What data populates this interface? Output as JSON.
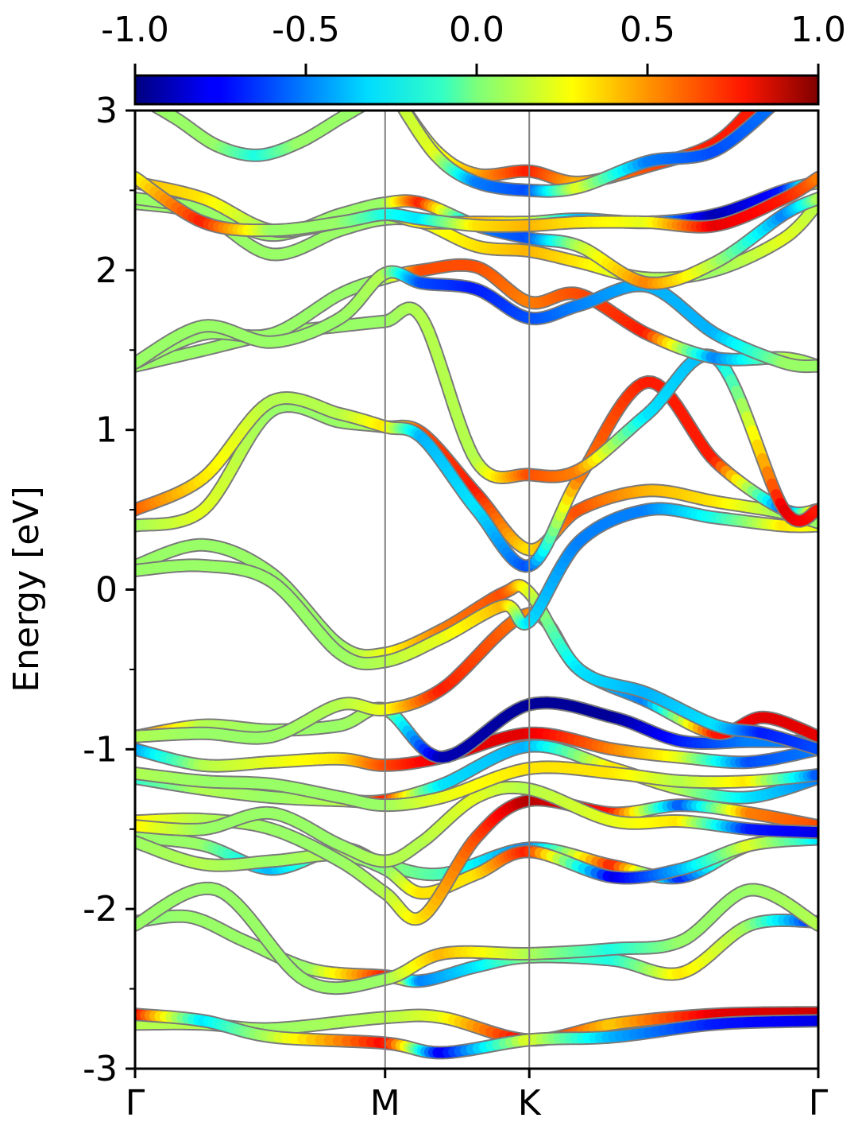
{
  "chart_data": {
    "type": "line",
    "ylabel": "Energy [eV]",
    "xlabel": "",
    "ylim": [
      -3,
      3
    ],
    "x_ticks": [
      {
        "label": "Γ",
        "x": 0.0
      },
      {
        "label": "M",
        "x": 0.366
      },
      {
        "label": "K",
        "x": 0.577
      },
      {
        "label": "Γ",
        "x": 1.0
      }
    ],
    "y_ticks": [
      {
        "label": "-3",
        "value": -3
      },
      {
        "label": "-2",
        "value": -2
      },
      {
        "label": "-1",
        "value": -1
      },
      {
        "label": "0",
        "value": 0
      },
      {
        "label": "1",
        "value": 1
      },
      {
        "label": "2",
        "value": 2
      },
      {
        "label": "3",
        "value": 3
      }
    ],
    "colorbar": {
      "range": [
        -1.0,
        1.0
      ],
      "colormap": "jet",
      "placement": "top",
      "ticks": [
        {
          "label": "-1.0",
          "value": -1.0
        },
        {
          "label": "-0.5",
          "value": -0.5
        },
        {
          "label": "0.0",
          "value": 0.0
        },
        {
          "label": "0.5",
          "value": 0.5
        },
        {
          "label": "1.0",
          "value": 1.0
        }
      ]
    },
    "grid": false,
    "series": [
      {
        "x": [
          0,
          0.1,
          0.2,
          0.366,
          0.45,
          0.577,
          0.7,
          0.85,
          1.0
        ],
        "energy": [
          -2.72,
          -2.72,
          -2.75,
          -2.68,
          -2.68,
          -2.82,
          -2.72,
          -2.66,
          -2.65
        ],
        "weight": [
          0.1,
          0.1,
          0.05,
          0.1,
          0.2,
          0.8,
          0.35,
          0.8,
          0.85
        ]
      },
      {
        "x": [
          0,
          0.1,
          0.2,
          0.366,
          0.45,
          0.577,
          0.7,
          0.85,
          1.0
        ],
        "energy": [
          -2.66,
          -2.7,
          -2.8,
          -2.84,
          -2.9,
          -2.82,
          -2.8,
          -2.72,
          -2.7
        ],
        "weight": [
          0.85,
          -0.3,
          0.1,
          0.75,
          -0.8,
          0.2,
          -0.4,
          -0.7,
          -0.8
        ]
      },
      {
        "x": [
          0,
          0.08,
          0.16,
          0.26,
          0.366,
          0.42,
          0.5,
          0.577,
          0.7,
          0.8,
          0.9,
          1.0
        ],
        "energy": [
          -2.08,
          -2.05,
          -2.2,
          -2.38,
          -2.42,
          -2.45,
          -2.36,
          -2.3,
          -2.32,
          -2.4,
          -2.1,
          -2.08
        ],
        "weight": [
          0.0,
          0.05,
          0.05,
          0.05,
          0.7,
          -0.5,
          -0.3,
          0.0,
          -0.2,
          0.3,
          0.05,
          -0.8
        ]
      },
      {
        "x": [
          0,
          0.12,
          0.25,
          0.366,
          0.45,
          0.577,
          0.7,
          0.8,
          0.9,
          1.0
        ],
        "energy": [
          -2.1,
          -1.88,
          -2.45,
          -2.44,
          -2.28,
          -2.28,
          -2.25,
          -2.2,
          -1.88,
          -2.1
        ],
        "weight": [
          0.05,
          0.05,
          0.05,
          0.05,
          0.4,
          0.1,
          -0.2,
          0.05,
          0.05,
          0.1
        ]
      },
      {
        "x": [
          0,
          0.1,
          0.2,
          0.3,
          0.366,
          0.45,
          0.577,
          0.7,
          0.8,
          0.9,
          1.0
        ],
        "energy": [
          -1.55,
          -1.6,
          -1.75,
          -1.62,
          -1.72,
          -1.78,
          -1.62,
          -1.73,
          -1.8,
          -1.6,
          -1.56
        ],
        "weight": [
          0.05,
          0.05,
          -0.4,
          0.1,
          0.05,
          -0.1,
          -0.5,
          0.7,
          -0.7,
          0.3,
          0.05
        ]
      },
      {
        "x": [
          0,
          0.1,
          0.2,
          0.3,
          0.366,
          0.42,
          0.5,
          0.577,
          0.7,
          0.8,
          0.9,
          1.0
        ],
        "energy": [
          -1.58,
          -1.72,
          -1.7,
          -1.66,
          -1.75,
          -1.9,
          -1.78,
          -1.64,
          -1.8,
          -1.75,
          -1.6,
          -1.56
        ],
        "weight": [
          0.05,
          0.1,
          0.05,
          0.1,
          0.0,
          0.3,
          0.3,
          0.7,
          -0.8,
          -0.4,
          0.2,
          -0.3
        ]
      },
      {
        "x": [
          0,
          0.1,
          0.2,
          0.3,
          0.366,
          0.42,
          0.5,
          0.577,
          0.7,
          0.8,
          0.9,
          1.0
        ],
        "energy": [
          -1.45,
          -1.44,
          -1.5,
          -1.7,
          -1.9,
          -2.05,
          -1.55,
          -1.32,
          -1.4,
          -1.35,
          -1.4,
          -1.48
        ],
        "weight": [
          0.3,
          0.1,
          0.05,
          0.05,
          0.1,
          0.3,
          0.6,
          0.9,
          0.7,
          -0.6,
          0.5,
          0.6
        ]
      },
      {
        "x": [
          0,
          0.1,
          0.2,
          0.3,
          0.366,
          0.42,
          0.5,
          0.577,
          0.7,
          0.8,
          0.9,
          1.0
        ],
        "energy": [
          -1.48,
          -1.5,
          -1.4,
          -1.6,
          -1.7,
          -1.58,
          -1.3,
          -1.25,
          -1.45,
          -1.45,
          -1.5,
          -1.52
        ],
        "weight": [
          0.3,
          0.05,
          0.05,
          0.05,
          0.1,
          0.1,
          0.2,
          0.1,
          0.2,
          0.3,
          -0.7,
          -0.8
        ]
      },
      {
        "x": [
          0,
          0.1,
          0.2,
          0.3,
          0.366,
          0.45,
          0.577,
          0.7,
          0.8,
          0.9,
          1.0
        ],
        "energy": [
          -1.18,
          -1.25,
          -1.3,
          -1.32,
          -1.32,
          -1.22,
          -0.98,
          -1.12,
          -1.25,
          -1.3,
          -1.18
        ],
        "weight": [
          -0.2,
          0.1,
          0.05,
          0.1,
          0.7,
          -0.3,
          -0.4,
          0.3,
          0.1,
          -0.3,
          -0.5
        ]
      },
      {
        "x": [
          0,
          0.1,
          0.2,
          0.3,
          0.366,
          0.45,
          0.577,
          0.7,
          0.8,
          0.9,
          1.0
        ],
        "energy": [
          -1.15,
          -1.2,
          -1.22,
          -1.3,
          -1.35,
          -1.3,
          -1.12,
          -1.15,
          -1.2,
          -1.2,
          -1.16
        ],
        "weight": [
          0.1,
          0.05,
          0.05,
          0.05,
          0.05,
          0.2,
          0.3,
          0.3,
          0.1,
          0.3,
          -0.6
        ]
      },
      {
        "x": [
          0,
          0.1,
          0.2,
          0.3,
          0.366,
          0.45,
          0.577,
          0.7,
          0.8,
          0.9,
          1.0
        ],
        "energy": [
          -1.0,
          -1.1,
          -1.08,
          -1.06,
          -1.1,
          -1.05,
          -0.9,
          -1.0,
          -1.05,
          -1.08,
          -1.0
        ],
        "weight": [
          -0.5,
          0.1,
          0.2,
          0.3,
          0.6,
          0.8,
          0.8,
          0.5,
          0.2,
          -0.6,
          -0.5
        ]
      },
      {
        "x": [
          0,
          0.1,
          0.2,
          0.3,
          0.366,
          0.45,
          0.577,
          0.7,
          0.8,
          0.9,
          1.0
        ],
        "energy": [
          -0.92,
          -0.85,
          -0.88,
          -0.85,
          -0.75,
          -1.05,
          -0.72,
          -0.8,
          -0.95,
          -0.95,
          -0.95
        ],
        "weight": [
          0.6,
          0.1,
          0.05,
          0.05,
          0.1,
          -0.9,
          -0.95,
          -0.95,
          -0.7,
          -0.5,
          -0.5
        ]
      },
      {
        "x": [
          0,
          0.1,
          0.2,
          0.3,
          0.366,
          0.45,
          0.577,
          0.65,
          0.75,
          0.85,
          0.92,
          1.0
        ],
        "energy": [
          -0.92,
          -0.9,
          -0.92,
          -0.72,
          -0.75,
          -0.62,
          -0.15,
          -0.5,
          -0.7,
          -0.9,
          -0.8,
          -0.92
        ],
        "weight": [
          0.1,
          0.05,
          0.05,
          0.1,
          0.2,
          0.7,
          0.5,
          -0.3,
          -0.5,
          0.7,
          0.8,
          0.8
        ]
      },
      {
        "x": [
          0,
          0.1,
          0.2,
          0.3,
          0.366,
          0.45,
          0.54,
          0.577,
          0.65,
          0.75,
          0.85,
          0.92,
          1.0
        ],
        "energy": [
          0.15,
          0.28,
          0.1,
          -0.35,
          -0.4,
          -0.25,
          -0.02,
          -0.02,
          -0.5,
          -0.65,
          -0.85,
          -0.9,
          -1.0
        ],
        "weight": [
          0.05,
          0.05,
          0.05,
          0.05,
          0.2,
          0.5,
          0.6,
          0.2,
          -0.3,
          -0.4,
          -0.3,
          -0.7,
          -0.6
        ]
      },
      {
        "x": [
          0,
          0.1,
          0.2,
          0.3,
          0.366,
          0.45,
          0.54,
          0.577,
          0.65,
          0.75,
          0.85,
          0.95,
          1.0
        ],
        "energy": [
          0.12,
          0.15,
          0.05,
          -0.4,
          -0.45,
          -0.3,
          -0.1,
          -0.2,
          0.3,
          0.5,
          0.45,
          0.4,
          0.4
        ],
        "weight": [
          0.05,
          0.05,
          0.05,
          0.05,
          0.1,
          0.2,
          0.4,
          -0.3,
          -0.5,
          -0.5,
          -0.2,
          0.3,
          0.2
        ]
      },
      {
        "x": [
          0,
          0.1,
          0.2,
          0.3,
          0.366,
          0.42,
          0.5,
          0.577,
          0.65,
          0.75,
          0.85,
          0.95,
          1.0
        ],
        "energy": [
          0.4,
          0.5,
          1.12,
          1.05,
          1.02,
          0.98,
          0.6,
          0.25,
          0.5,
          0.62,
          0.55,
          0.48,
          0.42
        ],
        "weight": [
          0.05,
          0.2,
          0.05,
          0.05,
          0.1,
          0.6,
          0.7,
          0.3,
          0.6,
          0.4,
          0.3,
          0.05,
          0.05
        ]
      },
      {
        "x": [
          0,
          0.1,
          0.2,
          0.3,
          0.366,
          0.42,
          0.5,
          0.577,
          0.65,
          0.75,
          0.85,
          0.95,
          1.0
        ],
        "energy": [
          0.5,
          0.7,
          1.18,
          1.1,
          1.02,
          0.95,
          0.5,
          0.15,
          0.7,
          1.3,
          0.8,
          0.5,
          0.5
        ],
        "weight": [
          0.6,
          0.3,
          0.1,
          0.1,
          0.3,
          -0.4,
          -0.3,
          -0.6,
          0.5,
          0.7,
          0.7,
          -0.6,
          0.6
        ]
      },
      {
        "x": [
          0,
          0.1,
          0.2,
          0.3,
          0.366,
          0.42,
          0.5,
          0.577,
          0.65,
          0.75,
          0.85,
          0.95,
          1.0
        ],
        "energy": [
          1.4,
          1.5,
          1.6,
          1.65,
          1.68,
          1.7,
          0.8,
          0.72,
          0.75,
          1.1,
          1.45,
          0.5,
          0.5
        ],
        "weight": [
          0.05,
          0.05,
          0.05,
          0.05,
          0.05,
          0.1,
          0.1,
          0.6,
          0.5,
          -0.3,
          -0.4,
          0.8,
          0.7
        ]
      },
      {
        "x": [
          0,
          0.1,
          0.2,
          0.3,
          0.366,
          0.42,
          0.5,
          0.577,
          0.65,
          0.75,
          0.85,
          0.95,
          1.0
        ],
        "energy": [
          1.42,
          1.6,
          1.6,
          1.85,
          1.95,
          2.0,
          2.02,
          1.8,
          1.85,
          1.6,
          1.45,
          1.45,
          1.4
        ],
        "weight": [
          0.05,
          0.05,
          0.05,
          0.05,
          0.05,
          0.6,
          0.6,
          0.5,
          0.6,
          0.7,
          -0.5,
          0.1,
          0.05
        ]
      },
      {
        "x": [
          0,
          0.1,
          0.2,
          0.3,
          0.366,
          0.42,
          0.5,
          0.577,
          0.65,
          0.75,
          0.85,
          0.95,
          1.0
        ],
        "energy": [
          1.42,
          1.65,
          1.55,
          1.7,
          1.98,
          1.92,
          1.88,
          1.7,
          1.78,
          1.9,
          1.6,
          1.42,
          1.4
        ],
        "weight": [
          0.05,
          0.05,
          0.05,
          0.05,
          0.1,
          -0.6,
          -0.7,
          -0.6,
          -0.5,
          -0.4,
          -0.4,
          0.05,
          0.05
        ]
      },
      {
        "x": [
          0,
          0.1,
          0.2,
          0.3,
          0.366,
          0.42,
          0.5,
          0.577,
          0.65,
          0.75,
          0.85,
          0.95,
          1.0
        ],
        "energy": [
          2.42,
          2.35,
          2.1,
          2.25,
          2.32,
          2.3,
          2.15,
          2.12,
          2.05,
          1.95,
          2.0,
          2.2,
          2.42
        ],
        "weight": [
          0.05,
          0.05,
          0.05,
          0.05,
          0.05,
          0.2,
          0.3,
          0.4,
          0.3,
          0.1,
          0.05,
          0.2,
          0.1
        ]
      },
      {
        "x": [
          0,
          0.1,
          0.2,
          0.3,
          0.366,
          0.42,
          0.5,
          0.577,
          0.65,
          0.75,
          0.85,
          0.95,
          1.0
        ],
        "energy": [
          2.45,
          2.38,
          2.22,
          2.35,
          2.42,
          2.42,
          2.28,
          2.2,
          2.15,
          1.92,
          2.05,
          2.35,
          2.45
        ],
        "weight": [
          0.05,
          0.05,
          0.05,
          0.05,
          0.05,
          0.7,
          -0.5,
          -0.6,
          0.1,
          0.5,
          0.1,
          -0.5,
          0.1
        ]
      },
      {
        "x": [
          0,
          0.1,
          0.2,
          0.3,
          0.366,
          0.42,
          0.5,
          0.577,
          0.65,
          0.75,
          0.85,
          0.95,
          1.0
        ],
        "energy": [
          2.55,
          2.45,
          2.25,
          2.3,
          2.35,
          2.3,
          2.3,
          2.3,
          2.32,
          2.3,
          2.35,
          2.5,
          2.55
        ],
        "weight": [
          0.4,
          0.3,
          0.05,
          0.1,
          0.2,
          0.3,
          0.4,
          0.2,
          -0.4,
          -0.3,
          -0.9,
          -0.7,
          0.3
        ]
      },
      {
        "x": [
          0,
          0.1,
          0.2,
          0.3,
          0.366,
          0.42,
          0.5,
          0.577,
          0.65,
          0.75,
          0.85,
          0.95,
          1.0
        ],
        "energy": [
          2.58,
          2.3,
          2.25,
          2.3,
          2.35,
          2.32,
          2.28,
          2.28,
          2.3,
          2.3,
          2.28,
          2.45,
          2.58
        ],
        "weight": [
          0.2,
          0.7,
          0.05,
          0.05,
          -0.2,
          -0.3,
          0.3,
          0.4,
          0.3,
          0.2,
          0.8,
          0.7,
          0.5
        ]
      },
      {
        "x": [
          0,
          0.06,
          0.12,
          0.18,
          0.24,
          0.3,
          0.36
        ],
        "energy": [
          3.1,
          2.95,
          2.78,
          2.72,
          2.8,
          2.95,
          3.1
        ],
        "weight": [
          0.05,
          0.05,
          0.05,
          -0.2,
          0.05,
          0.05,
          0.05
        ]
      },
      {
        "x": [
          0.38,
          0.44,
          0.5,
          0.577,
          0.65,
          0.75,
          0.85,
          0.92
        ],
        "energy": [
          3.1,
          2.75,
          2.6,
          2.62,
          2.55,
          2.65,
          2.8,
          3.1
        ],
        "weight": [
          0.1,
          0.2,
          0.4,
          0.7,
          0.4,
          0.6,
          0.7,
          0.7
        ]
      },
      {
        "x": [
          0.38,
          0.44,
          0.5,
          0.577,
          0.65,
          0.75,
          0.85,
          0.95
        ],
        "energy": [
          3.1,
          2.72,
          2.55,
          2.5,
          2.52,
          2.68,
          2.75,
          3.1
        ],
        "weight": [
          0.1,
          0.2,
          -0.5,
          -0.6,
          0.2,
          -0.5,
          -0.6,
          -0.5
        ]
      }
    ]
  }
}
